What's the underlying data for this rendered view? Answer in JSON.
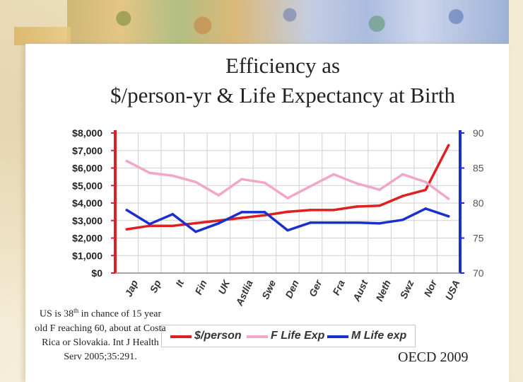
{
  "slide": {
    "title_line1": "Efficiency as",
    "title_line2": "$/person-yr & Life Expectancy at Birth",
    "note_pre": "US is 38",
    "note_sup": "th",
    "note_post": " in chance of 15 year old F reaching 60, about at Costa Rica or Slovakia. Int J Health Serv 2005;35:291.",
    "source": "OECD 2009"
  },
  "colors": {
    "person": "#e02020",
    "flife": "#f2a6c8",
    "mlife": "#1a2fd0",
    "left_axis": "#e02020",
    "right_axis": "#1a2fd0",
    "grid": "#d0d0d0"
  },
  "chart_data": {
    "type": "line",
    "categories": [
      "Jap",
      "Sp",
      "It",
      "Fin",
      "UK",
      "Astlia",
      "Swe",
      "Den",
      "Ger",
      "Fra",
      "Aust",
      "Neth",
      "Swz",
      "Nor",
      "USA"
    ],
    "y_left_ticks": [
      "$8,000",
      "$7,000",
      "$6,000",
      "$5,000",
      "$4,000",
      "$3,000",
      "$2,000",
      "$1,000",
      "$0"
    ],
    "y_right_ticks": [
      "90",
      "85",
      "80",
      "75",
      "70"
    ],
    "ylim_left": [
      0,
      8000
    ],
    "ylim_right": [
      70,
      90
    ],
    "grid": true,
    "legend_position": "bottom",
    "series": [
      {
        "name": "$/person",
        "axis": "left",
        "color_key": "person",
        "values": [
          2500,
          2700,
          2700,
          2850,
          3000,
          3150,
          3300,
          3500,
          3600,
          3600,
          3800,
          3850,
          4400,
          4750,
          7300
        ]
      },
      {
        "name": "F Life Exp",
        "axis": "right",
        "color_key": "flife",
        "values": [
          86.0,
          84.3,
          83.9,
          83.0,
          81.1,
          83.4,
          82.9,
          80.7,
          82.4,
          84.1,
          82.8,
          81.9,
          84.1,
          83.0,
          80.6
        ]
      },
      {
        "name": "M Life exp",
        "axis": "right",
        "color_key": "mlife",
        "values": [
          79.0,
          77.0,
          78.4,
          75.9,
          77.1,
          78.7,
          78.7,
          76.1,
          77.2,
          77.2,
          77.2,
          77.1,
          77.6,
          79.2,
          78.1
        ]
      }
    ]
  }
}
